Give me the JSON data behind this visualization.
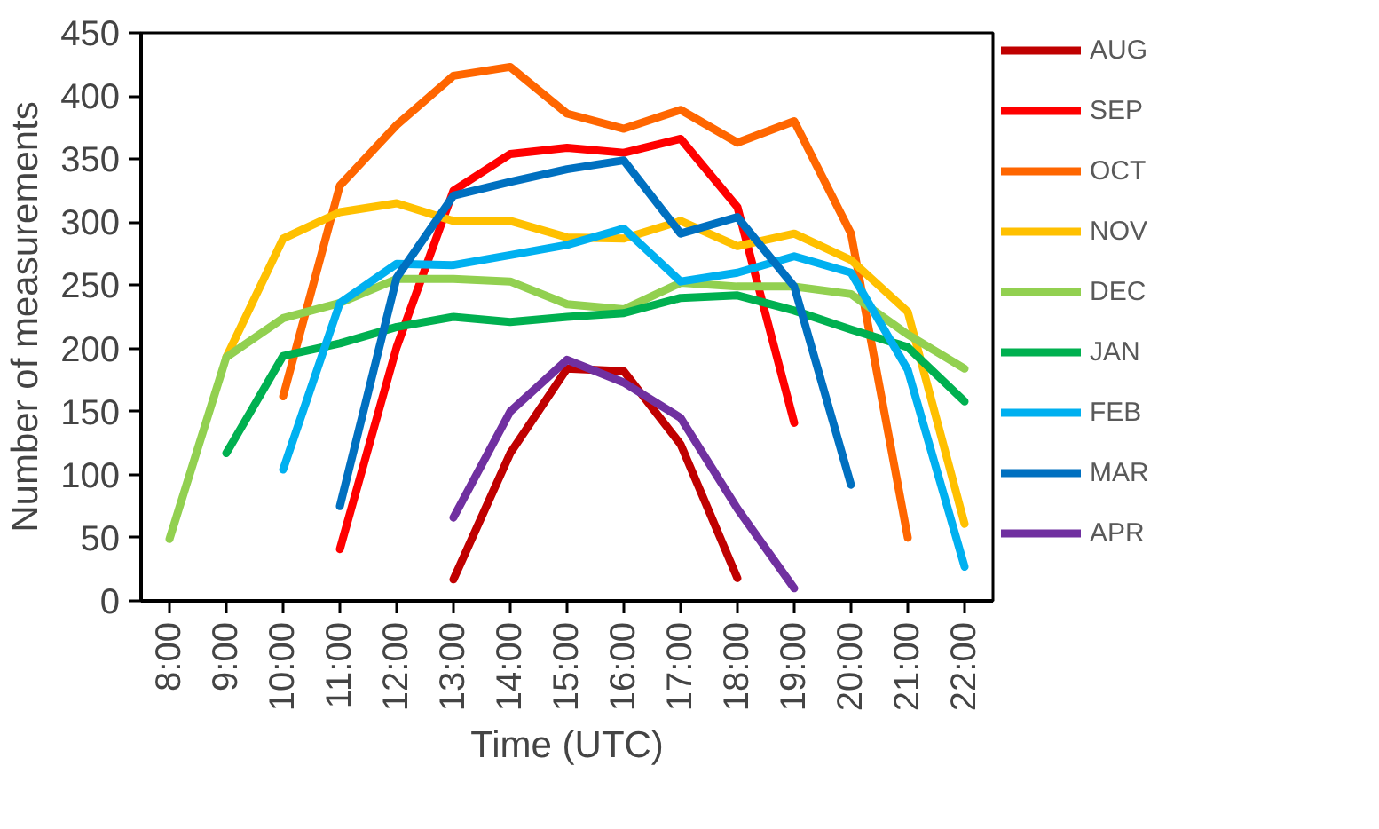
{
  "chart_data": {
    "type": "line",
    "xlabel": "Time (UTC)",
    "ylabel": "Number of measurements",
    "categories": [
      "8:00",
      "9:00",
      "10:00",
      "11:00",
      "12:00",
      "13:00",
      "14:00",
      "15:00",
      "16:00",
      "17:00",
      "18:00",
      "19:00",
      "20:00",
      "21:00",
      "22:00"
    ],
    "ylim": [
      0,
      450
    ],
    "yticks": [
      0,
      50,
      100,
      150,
      200,
      250,
      300,
      350,
      400,
      450
    ],
    "grid": false,
    "legend": "right",
    "line_style": "solid",
    "marker": "none",
    "series": [
      {
        "name": "AUG",
        "color": "#c00000",
        "values": [
          null,
          null,
          null,
          null,
          null,
          17,
          117,
          184,
          182,
          124,
          18,
          null,
          null,
          null,
          null
        ]
      },
      {
        "name": "SEP",
        "color": "#ff0000",
        "values": [
          null,
          null,
          null,
          41,
          201,
          325,
          354,
          359,
          355,
          366,
          312,
          141,
          null,
          null,
          null
        ]
      },
      {
        "name": "OCT",
        "color": "#ff6600",
        "values": [
          null,
          null,
          162,
          329,
          377,
          416,
          423,
          386,
          374,
          389,
          363,
          380,
          291,
          50,
          null
        ]
      },
      {
        "name": "NOV",
        "color": "#ffc000",
        "values": [
          null,
          193,
          287,
          308,
          315,
          301,
          301,
          288,
          287,
          301,
          281,
          291,
          270,
          229,
          61
        ]
      },
      {
        "name": "DEC",
        "color": "#92d050",
        "values": [
          49,
          193,
          224,
          236,
          255,
          255,
          253,
          235,
          231,
          252,
          249,
          249,
          243,
          211,
          184
        ]
      },
      {
        "name": "JAN",
        "color": "#00b050",
        "values": [
          null,
          117,
          194,
          204,
          217,
          225,
          221,
          225,
          228,
          240,
          242,
          230,
          215,
          201,
          158
        ]
      },
      {
        "name": "FEB",
        "color": "#00b0f0",
        "values": [
          null,
          null,
          104,
          236,
          267,
          266,
          274,
          282,
          295,
          253,
          260,
          273,
          260,
          183,
          27
        ]
      },
      {
        "name": "MAR",
        "color": "#0070c0",
        "values": [
          null,
          null,
          null,
          75,
          256,
          321,
          332,
          342,
          349,
          291,
          304,
          249,
          92,
          null,
          null
        ]
      },
      {
        "name": "APR",
        "color": "#7030a0",
        "values": [
          null,
          null,
          null,
          null,
          null,
          66,
          150,
          191,
          173,
          145,
          73,
          10,
          null,
          null,
          null
        ]
      }
    ]
  }
}
